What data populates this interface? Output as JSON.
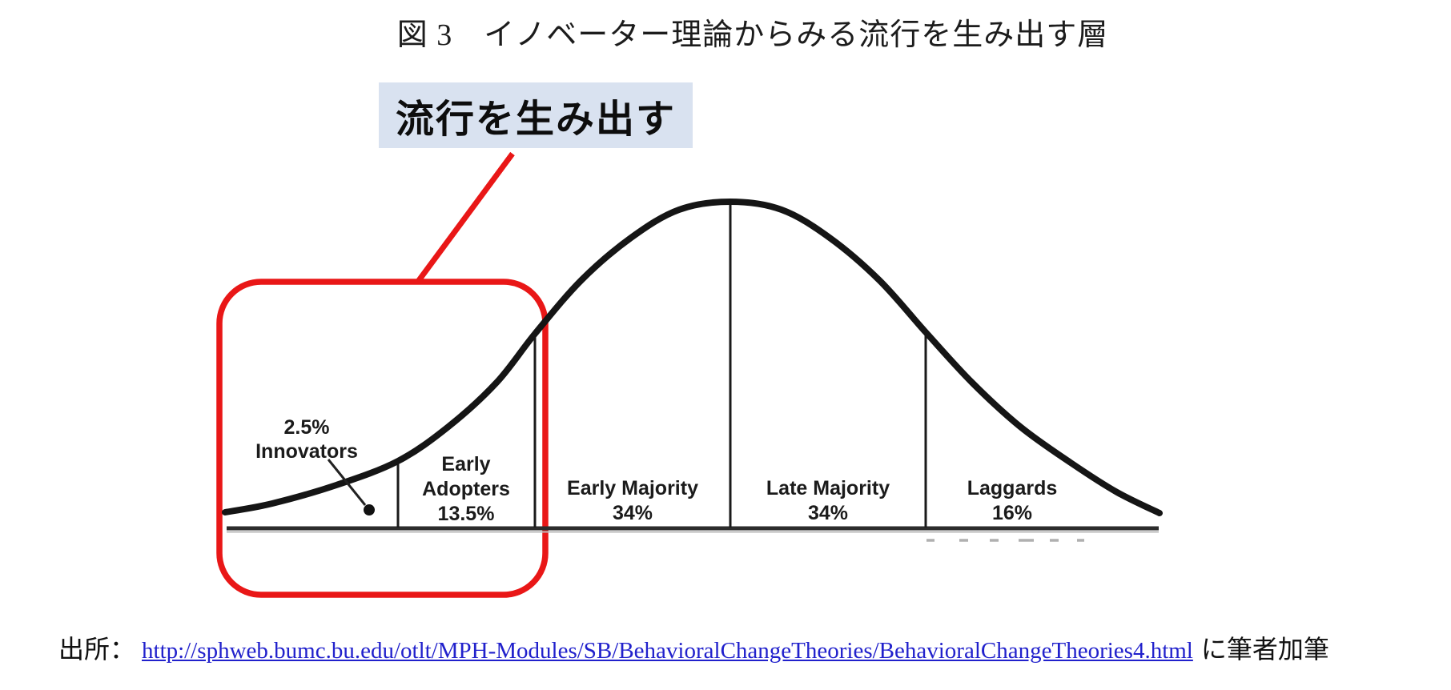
{
  "figure": {
    "title": "図 3　イノベーター理論からみる流行を生み出す層",
    "callout_label": "流行を生み出す",
    "source_prefix": "出所：",
    "source_url": "http://sphweb.bumc.bu.edu/otlt/MPH-Modules/SB/BehavioralChangeTheories/BehavioralChangeTheories4.html",
    "source_suffix": "に筆者加筆"
  },
  "colors": {
    "highlight_red": "#e91717",
    "callout_bg": "#d9e2f0",
    "link_blue": "#2121cc",
    "curve_black": "#151515"
  },
  "chart_data": {
    "type": "area",
    "title": "図 3　イノベーター理論からみる流行を生み出す層",
    "description": "Bell curve of innovation adoption (diffusion of innovations), segments labeled with percentages; Innovators and Early Adopters enclosed in a red rounded box annotated as the trend-creating layer.",
    "categories": [
      "Innovators",
      "Early Adopters",
      "Early Majority",
      "Late Majority",
      "Laggards"
    ],
    "values": [
      2.5,
      13.5,
      34,
      34,
      16
    ],
    "unit": "%",
    "annotation": {
      "label": "流行を生み出す",
      "applies_to": [
        "Innovators",
        "Early Adopters"
      ]
    },
    "segments": [
      {
        "name": "Innovators",
        "percent": "2.5%",
        "l1": "2.5%",
        "l2": "Innovators",
        "l3": ""
      },
      {
        "name": "Early Adopters",
        "percent": "13.5%",
        "l1": "Early",
        "l2": "Adopters",
        "l3": "13.5%"
      },
      {
        "name": "Early Majority",
        "percent": "34%",
        "l1": "Early Majority",
        "l2": "34%",
        "l3": ""
      },
      {
        "name": "Late Majority",
        "percent": "34%",
        "l1": "Late Majority",
        "l2": "34%",
        "l3": ""
      },
      {
        "name": "Laggards",
        "percent": "16%",
        "l1": "Laggards",
        "l2": "16%",
        "l3": ""
      }
    ]
  }
}
